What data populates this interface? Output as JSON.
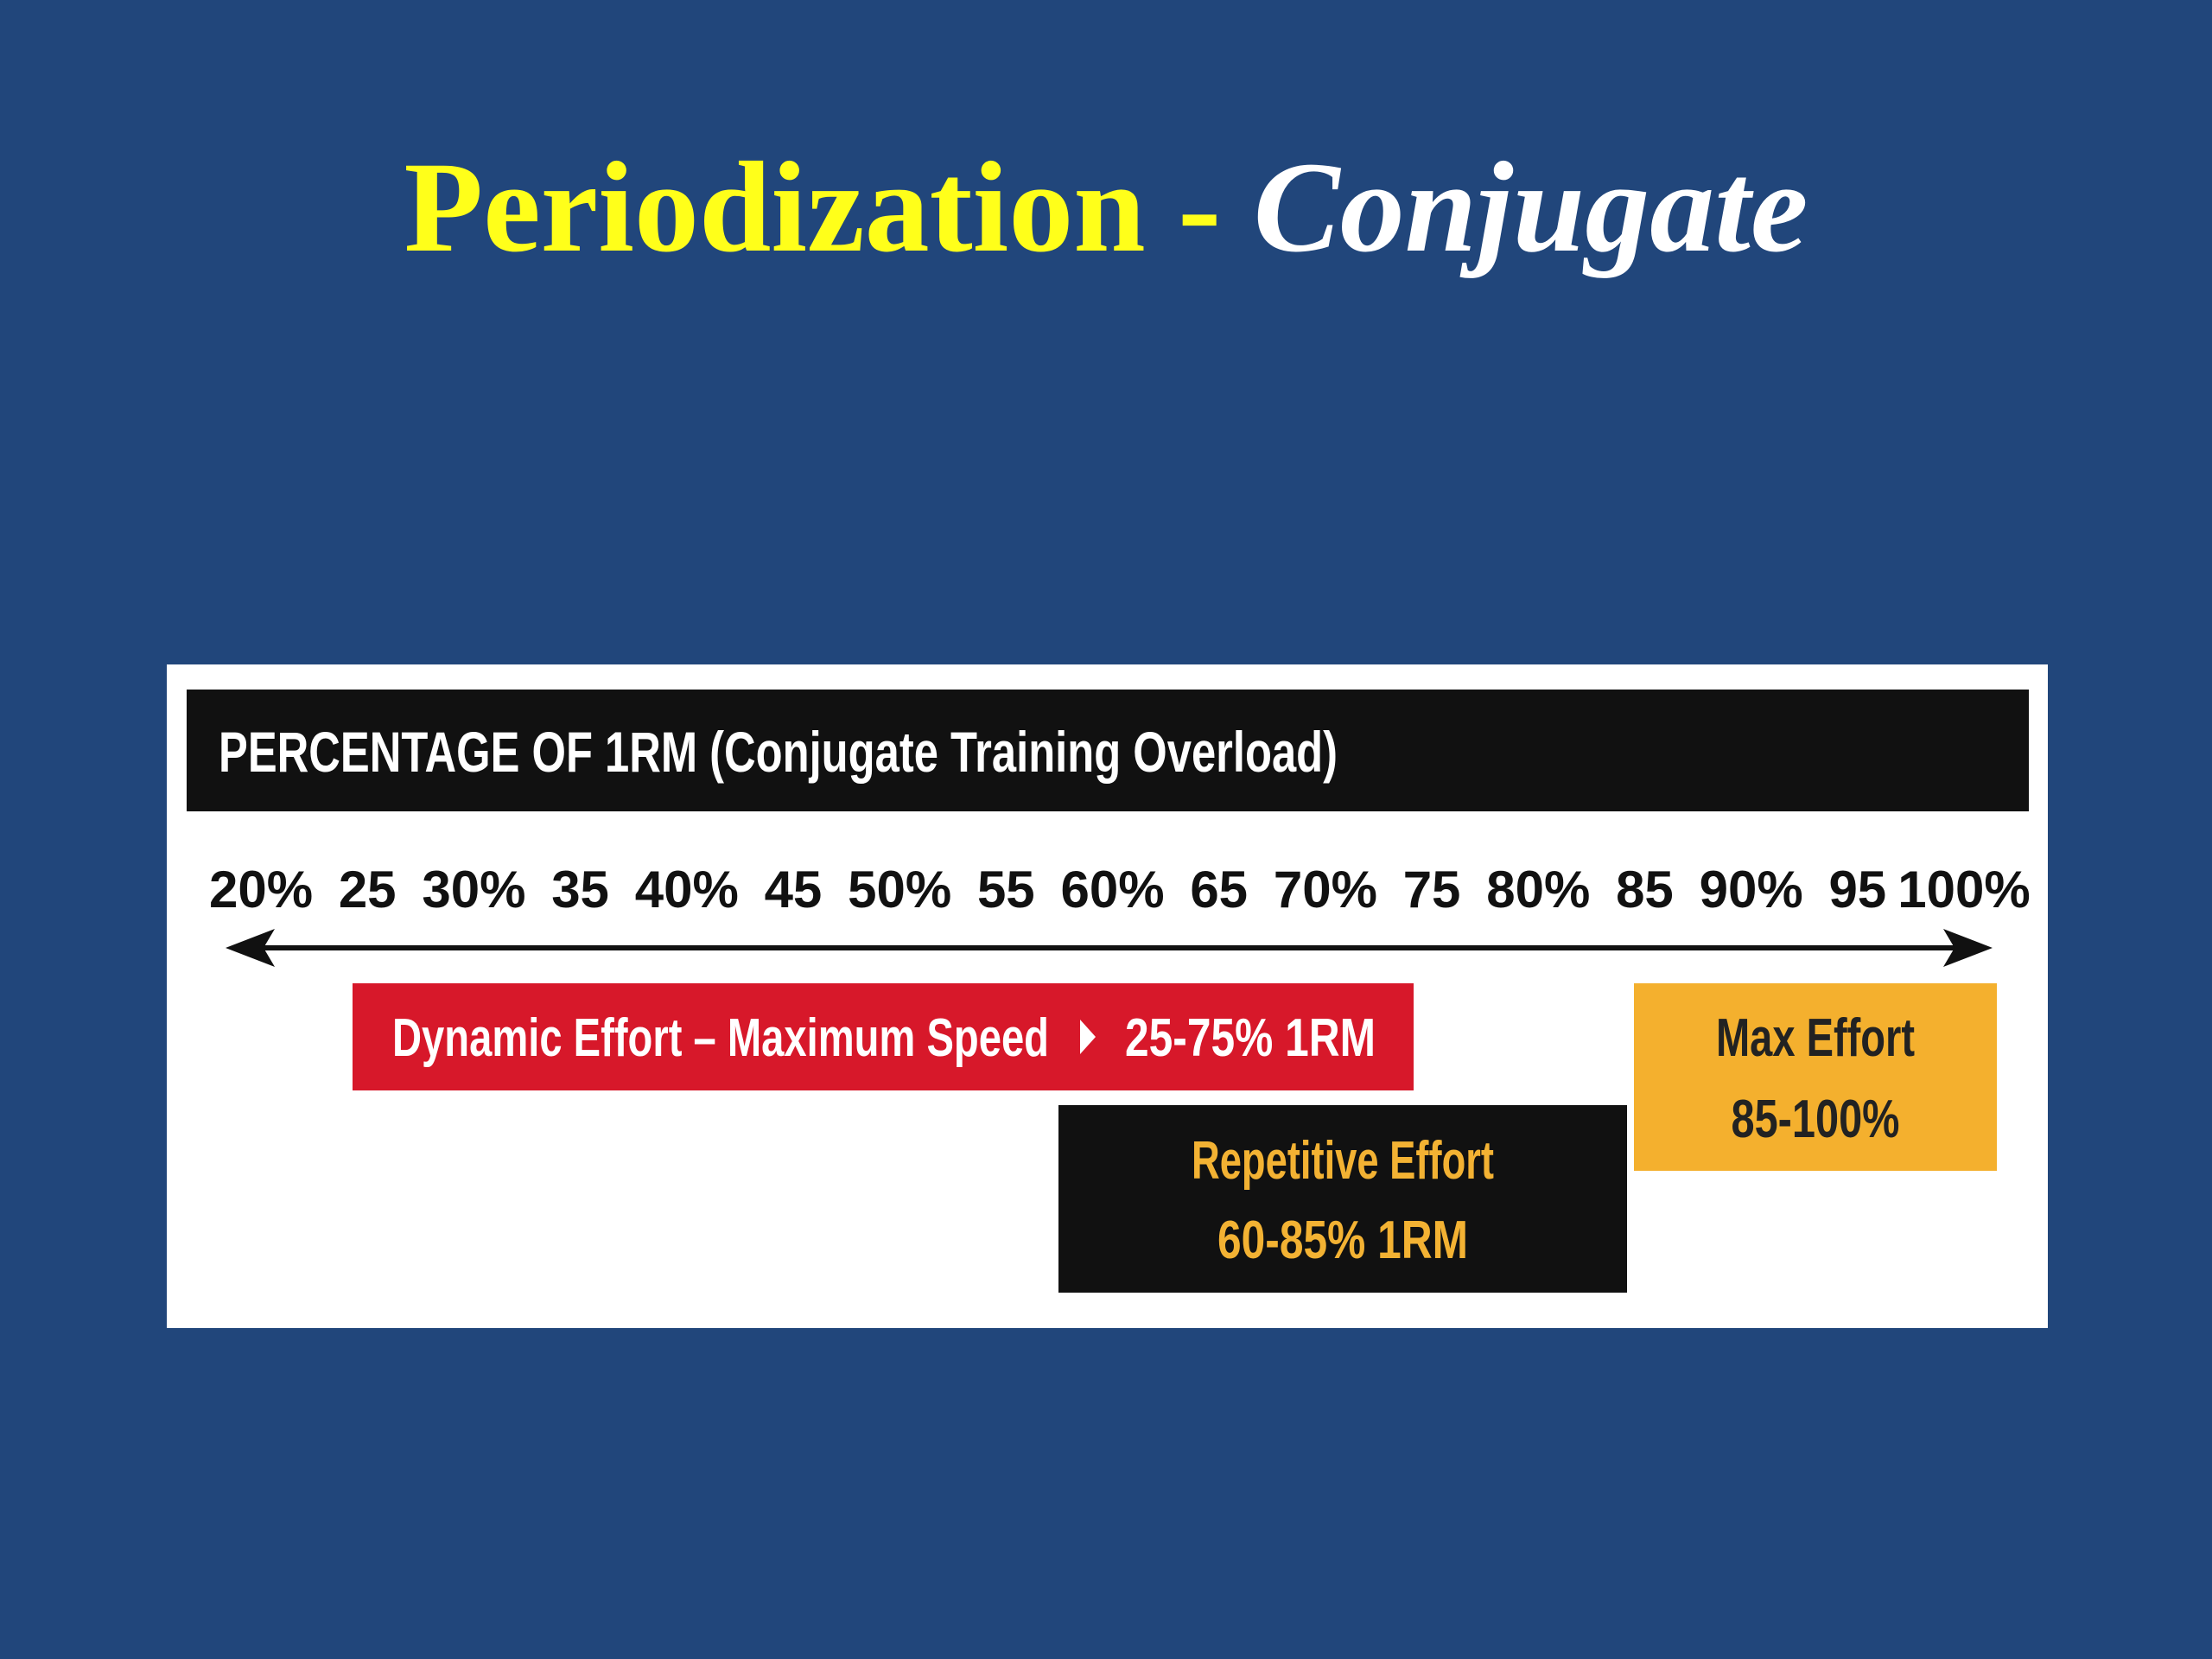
{
  "slide": {
    "title": {
      "main": "Periodization -",
      "emphasis": "Conjugate"
    },
    "figure": {
      "header": "PERCENTAGE OF 1RM (Conjugate Training Overload)",
      "scale_labels": [
        "20%",
        "25",
        "30%",
        "35",
        "40%",
        "45",
        "50%",
        "55",
        "60%",
        "65",
        "70%",
        "75",
        "80%",
        "85",
        "90%",
        "95",
        "100%"
      ],
      "dynamic_effort": {
        "label": "Dynamic Effort – Maximum Speed",
        "range": "25-75% 1RM"
      },
      "repetitive_effort": {
        "label": "Repetitive Effort",
        "range": "60-85% 1RM"
      },
      "max_effort": {
        "label": "Max Effort",
        "range": "85-100%"
      }
    }
  }
}
